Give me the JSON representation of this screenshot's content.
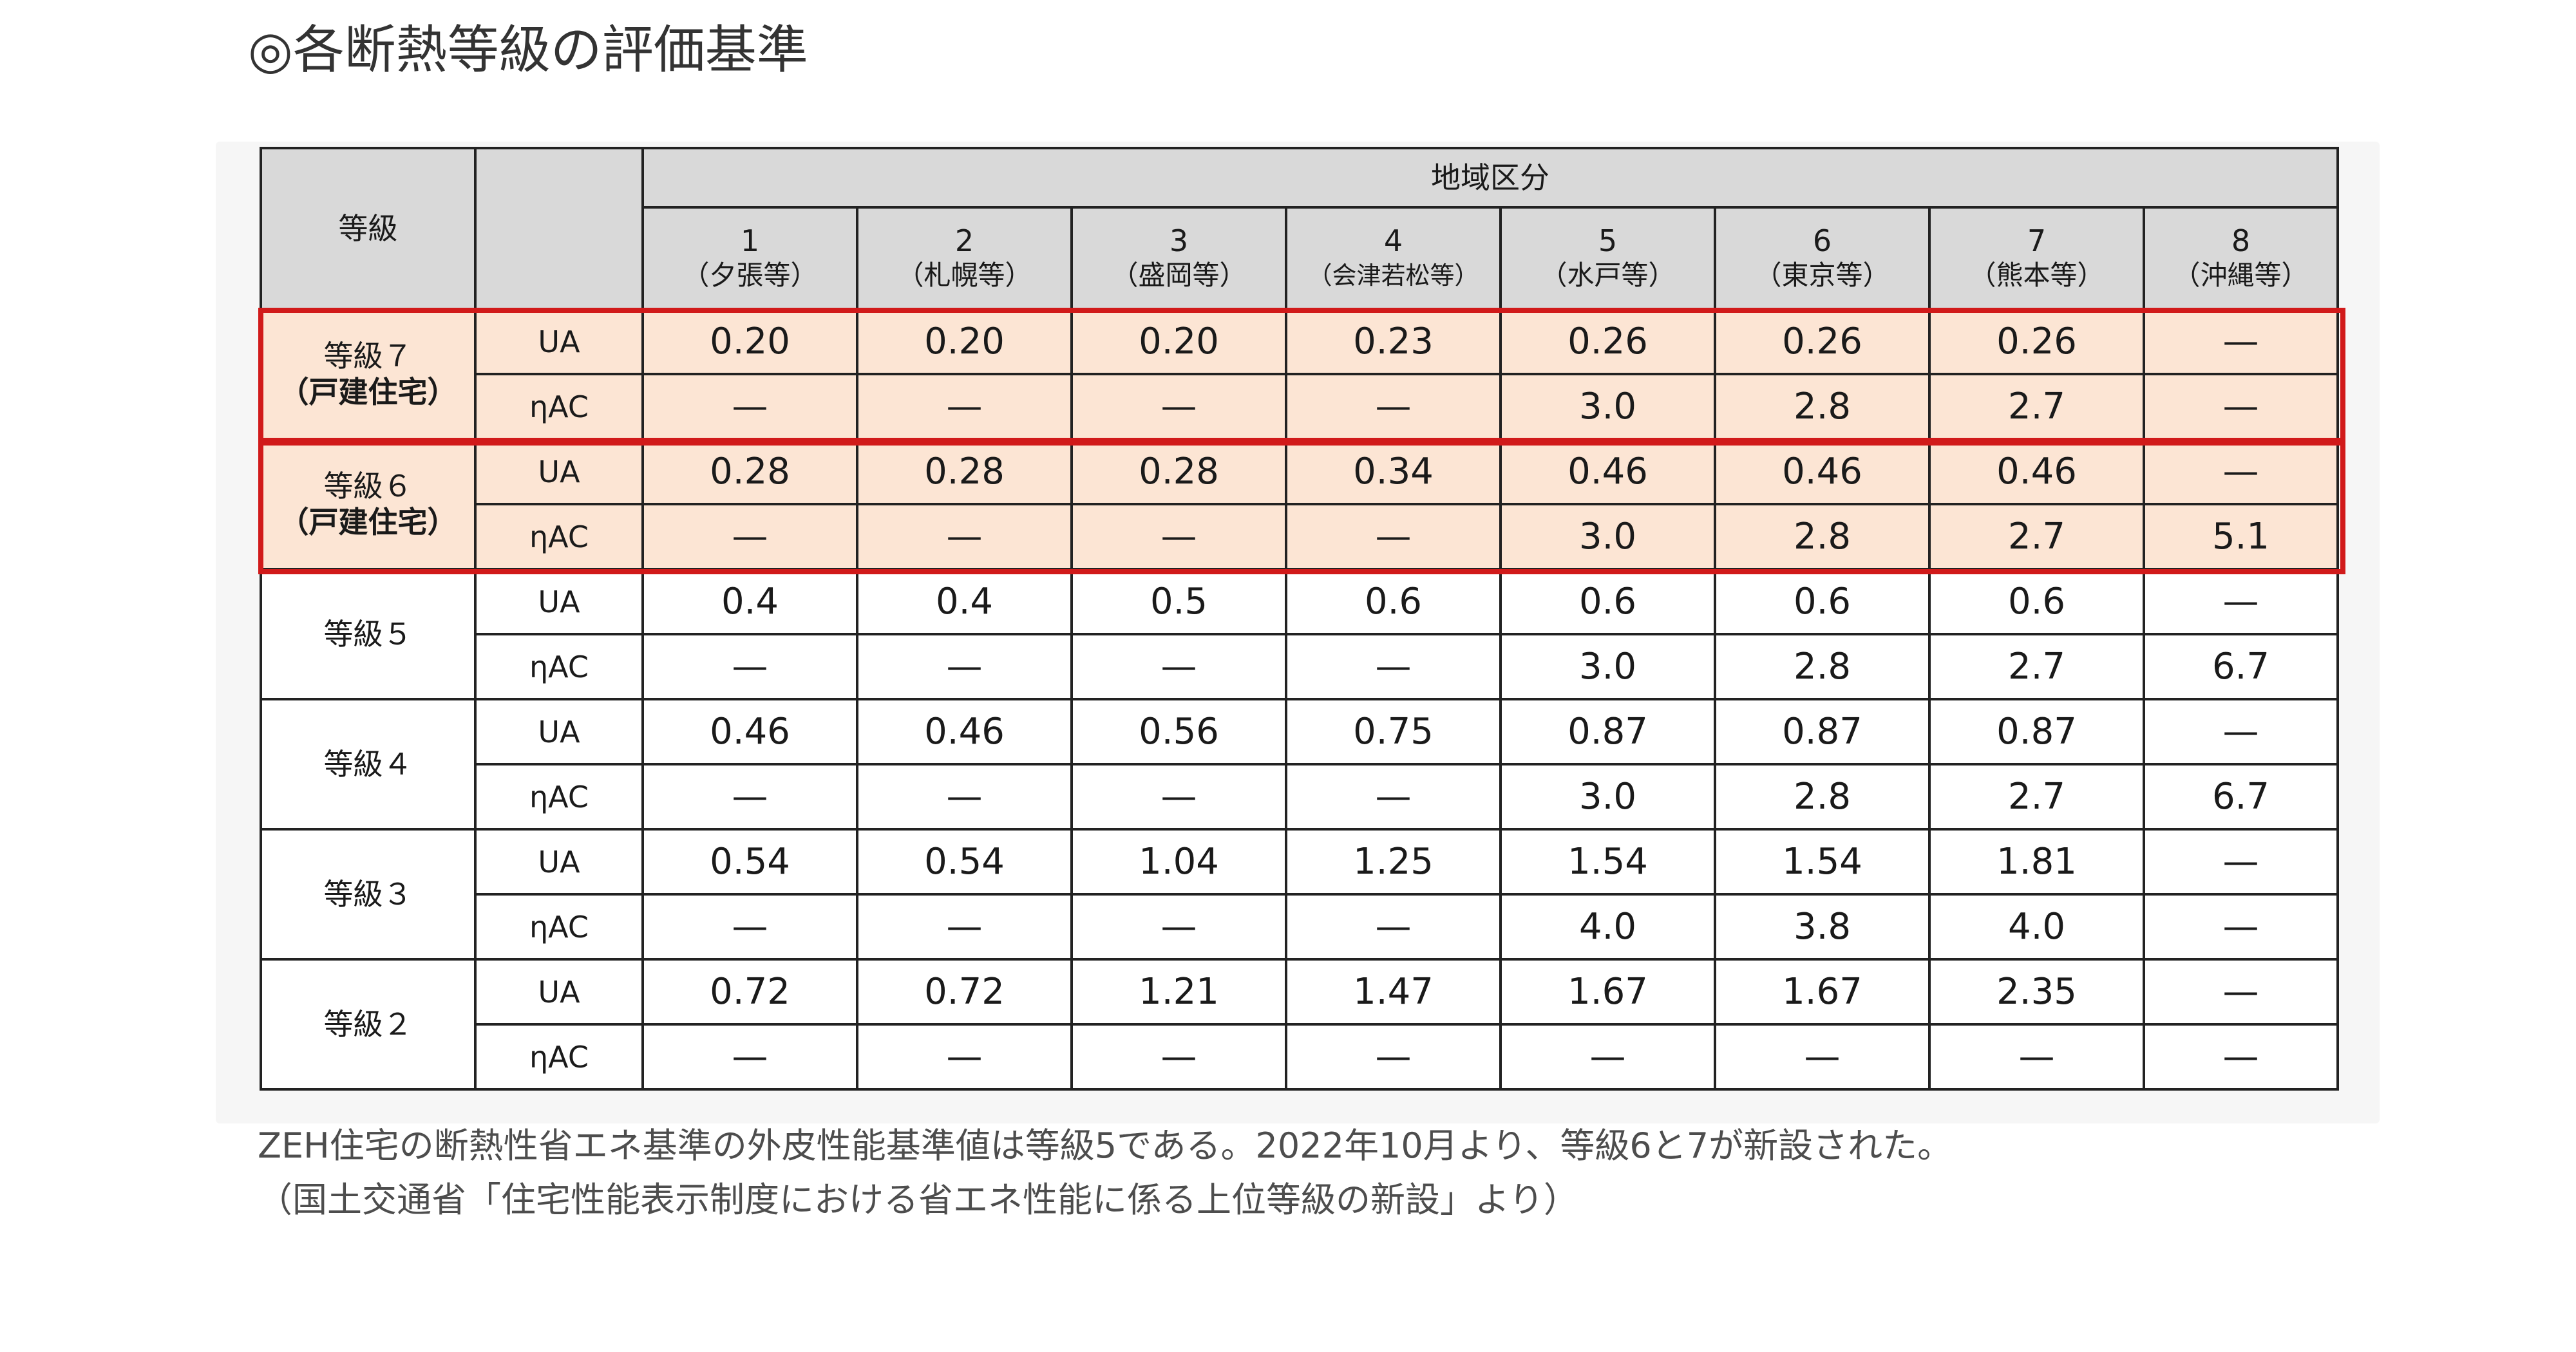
{
  "title": "◎各断熱等級の評価基準",
  "table": {
    "grade_header": "等級",
    "region_header": "地域区分",
    "regions": [
      {
        "num": "1",
        "city": "（夕張等）"
      },
      {
        "num": "2",
        "city": "（札幌等）"
      },
      {
        "num": "3",
        "city": "（盛岡等）"
      },
      {
        "num": "4",
        "city": "（会津若松等）"
      },
      {
        "num": "5",
        "city": "（水戸等）"
      },
      {
        "num": "6",
        "city": "（東京等）"
      },
      {
        "num": "7",
        "city": "（熊本等）"
      },
      {
        "num": "8",
        "city": "（沖縄等）"
      }
    ],
    "grades": [
      {
        "name": "等級７",
        "sub": "（戸建住宅）",
        "highlight": true,
        "ua_label": "UA",
        "ua": [
          "0.20",
          "0.20",
          "0.20",
          "0.23",
          "0.26",
          "0.26",
          "0.26",
          "—"
        ],
        "eta_label": "ηAC",
        "eta": [
          "—",
          "—",
          "—",
          "—",
          "3.0",
          "2.8",
          "2.7",
          "—"
        ]
      },
      {
        "name": "等級６",
        "sub": "（戸建住宅）",
        "highlight": true,
        "ua_label": "UA",
        "ua": [
          "0.28",
          "0.28",
          "0.28",
          "0.34",
          "0.46",
          "0.46",
          "0.46",
          "—"
        ],
        "eta_label": "ηAC",
        "eta": [
          "—",
          "—",
          "—",
          "—",
          "3.0",
          "2.8",
          "2.7",
          "5.1"
        ]
      },
      {
        "name": "等級５",
        "sub": "",
        "highlight": false,
        "ua_label": "UA",
        "ua": [
          "0.4",
          "0.4",
          "0.5",
          "0.6",
          "0.6",
          "0.6",
          "0.6",
          "—"
        ],
        "eta_label": "ηAC",
        "eta": [
          "—",
          "—",
          "—",
          "—",
          "3.0",
          "2.8",
          "2.7",
          "6.7"
        ]
      },
      {
        "name": "等級４",
        "sub": "",
        "highlight": false,
        "ua_label": "UA",
        "ua": [
          "0.46",
          "0.46",
          "0.56",
          "0.75",
          "0.87",
          "0.87",
          "0.87",
          "—"
        ],
        "eta_label": "ηAC",
        "eta": [
          "—",
          "—",
          "—",
          "—",
          "3.0",
          "2.8",
          "2.7",
          "6.7"
        ]
      },
      {
        "name": "等級３",
        "sub": "",
        "highlight": false,
        "ua_label": "UA",
        "ua": [
          "0.54",
          "0.54",
          "1.04",
          "1.25",
          "1.54",
          "1.54",
          "1.81",
          "—"
        ],
        "eta_label": "ηAC",
        "eta": [
          "—",
          "—",
          "—",
          "—",
          "4.0",
          "3.8",
          "4.0",
          "—"
        ]
      },
      {
        "name": "等級２",
        "sub": "",
        "highlight": false,
        "ua_label": "UA",
        "ua": [
          "0.72",
          "0.72",
          "1.21",
          "1.47",
          "1.67",
          "1.67",
          "2.35",
          "—"
        ],
        "eta_label": "ηAC",
        "eta": [
          "—",
          "—",
          "—",
          "—",
          "—",
          "—",
          "—",
          "—"
        ]
      }
    ]
  },
  "notes": [
    "ZEH住宅の断熱性省エネ基準の外皮性能基準値は等級5である。2022年10月より、等級6と7が新設された。",
    "（国土交通省「住宅性能表示制度における省エネ性能に係る上位等級の新設」より）"
  ],
  "colors": {
    "highlight_fill": "#fce5d4",
    "highlight_border": "#d11a1a",
    "header_fill": "#d9d9d9"
  }
}
